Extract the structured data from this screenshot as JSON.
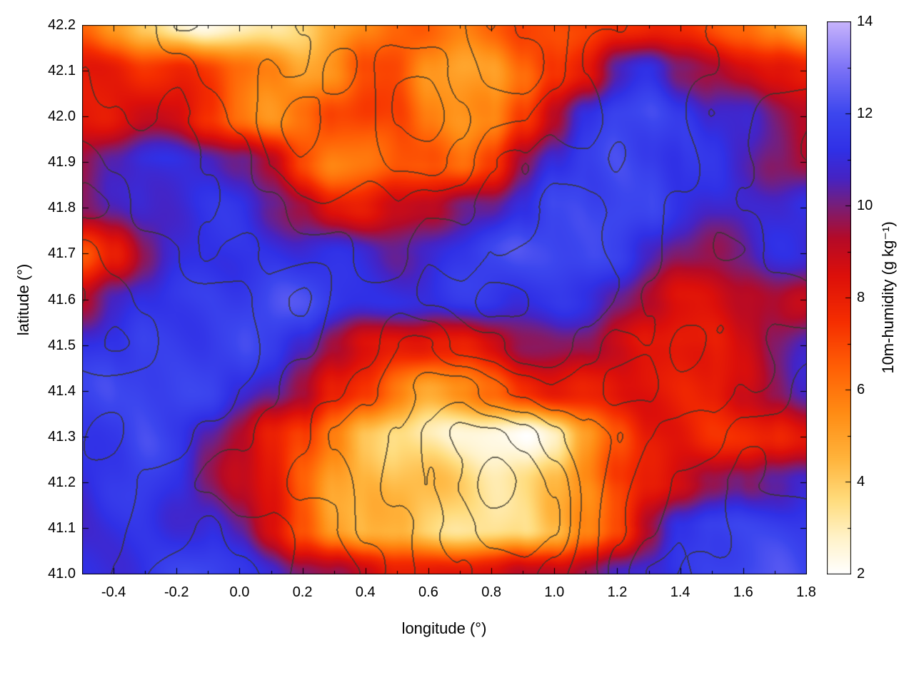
{
  "figure": {
    "background": "#ffffff",
    "frame_color": "#000000"
  },
  "chart_data": {
    "type": "heatmap",
    "title": "",
    "xlabel": "longitude (°)",
    "ylabel": "latitude (°)",
    "x_range": [
      -0.5,
      1.8
    ],
    "y_range": [
      41.0,
      42.2
    ],
    "x_tick_values": [
      -0.4,
      -0.2,
      0.0,
      0.2,
      0.4,
      0.6,
      0.8,
      1.0,
      1.2,
      1.4,
      1.6,
      1.8
    ],
    "x_tick_labels": [
      "-0.4",
      "-0.2",
      "0.0",
      "0.2",
      "0.4",
      "0.6",
      "0.8",
      "1.0",
      "1.2",
      "1.4",
      "1.6",
      "1.8"
    ],
    "x_minor_step": 0.1,
    "y_tick_values": [
      41.0,
      41.1,
      41.2,
      41.3,
      41.4,
      41.5,
      41.6,
      41.7,
      41.8,
      41.9,
      42.0,
      42.1,
      42.2
    ],
    "y_tick_labels": [
      "41.0",
      "41.1",
      "41.2",
      "41.3",
      "41.4",
      "41.5",
      "41.6",
      "41.7",
      "41.8",
      "41.9",
      "42.0",
      "42.1",
      "42.2"
    ],
    "colorbar": {
      "label": "10m-humidity (g kg⁻¹)",
      "min": 2,
      "max": 14,
      "tick_values": [
        2,
        4,
        6,
        8,
        10,
        12,
        14
      ],
      "tick_labels": [
        "2",
        "4",
        "6",
        "8",
        "10",
        "12",
        "14"
      ],
      "minor_step": 1,
      "stops": [
        [
          2.0,
          "#ffffff"
        ],
        [
          2.8,
          "#fff2c8"
        ],
        [
          3.6,
          "#ffdc7d"
        ],
        [
          4.5,
          "#ffb43c"
        ],
        [
          5.5,
          "#ff8c14"
        ],
        [
          6.5,
          "#ff5f05"
        ],
        [
          7.5,
          "#f52d00"
        ],
        [
          8.5,
          "#dc0f0a"
        ],
        [
          9.3,
          "#b40a28"
        ],
        [
          10.0,
          "#781e78"
        ],
        [
          10.6,
          "#4623c3"
        ],
        [
          11.2,
          "#3030e6"
        ],
        [
          12.0,
          "#3c46ee"
        ],
        [
          13.0,
          "#7d73f6"
        ],
        [
          14.0,
          "#c8b4fc"
        ]
      ]
    },
    "grid": {
      "lon": [
        -0.5,
        -0.4,
        -0.3,
        -0.2,
        -0.1,
        0.0,
        0.1,
        0.2,
        0.3,
        0.4,
        0.5,
        0.6,
        0.7,
        0.8,
        0.9,
        1.0,
        1.1,
        1.2,
        1.3,
        1.4,
        1.5,
        1.6,
        1.7,
        1.8
      ],
      "lat_top_to_bottom": [
        42.2,
        42.1,
        42.0,
        41.9,
        41.8,
        41.7,
        41.6,
        41.5,
        41.4,
        41.3,
        41.2,
        41.1,
        41.0
      ],
      "humidity_g_per_kg": [
        [
          6,
          5,
          4,
          3.5,
          3,
          3,
          3.5,
          4,
          4.5,
          5,
          5.5,
          6,
          6,
          6.5,
          7,
          7,
          7,
          7.5,
          7.5,
          7,
          7,
          7,
          6,
          5
        ],
        [
          8,
          8,
          7.5,
          7.5,
          7,
          6.5,
          6,
          5,
          5,
          6,
          6.5,
          5,
          4.5,
          5,
          6.5,
          8,
          9,
          10.5,
          11,
          10,
          9.5,
          9,
          8.5,
          8
        ],
        [
          8.5,
          8,
          8,
          8,
          7,
          6,
          5.5,
          6,
          7,
          7.5,
          7,
          5.5,
          5,
          5.5,
          8,
          10,
          11.5,
          12.3,
          12.3,
          11.5,
          10.5,
          10,
          9.5,
          9.5
        ],
        [
          9.5,
          10,
          10.5,
          10.5,
          10.5,
          10,
          9,
          7.5,
          6.5,
          6.5,
          7,
          6.5,
          6,
          7.5,
          9.5,
          11,
          12,
          12.5,
          12,
          11,
          10.5,
          10,
          9.5,
          9
        ],
        [
          10,
          10.5,
          11,
          11,
          11,
          11,
          10.5,
          10,
          9,
          8.5,
          9,
          9.5,
          10,
          9.5,
          10.5,
          11.5,
          12,
          12.3,
          11.8,
          11,
          10.8,
          10.5,
          10.5,
          10.8
        ],
        [
          7,
          9,
          10.5,
          11,
          11.2,
          11.2,
          11.2,
          11,
          11,
          11,
          10.8,
          10.8,
          11,
          11.3,
          11.5,
          11.8,
          11.8,
          11.5,
          11,
          10.5,
          10.2,
          10.5,
          10.8,
          10.8
        ],
        [
          10,
          11,
          11.5,
          11.8,
          11.8,
          11.5,
          11.5,
          11.3,
          11.2,
          11.2,
          11.2,
          11.2,
          11.4,
          11.5,
          11.2,
          11,
          10.8,
          10.3,
          9.8,
          9.3,
          9,
          9.3,
          9.8,
          9
        ],
        [
          10.8,
          11.2,
          11.8,
          12,
          11.8,
          11.5,
          11,
          10.3,
          9,
          8.3,
          8,
          8.3,
          8.8,
          9.3,
          9.8,
          9.8,
          9.5,
          9,
          8.5,
          8,
          8.3,
          9.3,
          10,
          10.5
        ],
        [
          11,
          11.5,
          12,
          12,
          11.8,
          11.2,
          10.5,
          9.5,
          7.8,
          6.8,
          6,
          5.5,
          6,
          6.8,
          7.8,
          8.3,
          8,
          7.8,
          7.5,
          7.5,
          8,
          9,
          9.8,
          10.3
        ],
        [
          11,
          11.3,
          11.8,
          11.5,
          10.8,
          10,
          8.8,
          7.3,
          5.5,
          4.2,
          3.5,
          3,
          2.6,
          2.4,
          2.5,
          3.2,
          4.5,
          6,
          7.5,
          7.8,
          7.3,
          7.3,
          7.8,
          9
        ],
        [
          11,
          11.2,
          11.5,
          11.2,
          10.5,
          9.8,
          8.5,
          6.8,
          5.2,
          4.3,
          3.8,
          3.5,
          3.4,
          3.3,
          3.6,
          4.3,
          5.5,
          7,
          8,
          8.5,
          9,
          10,
          11,
          11.5
        ],
        [
          11,
          11,
          11.2,
          11,
          10.8,
          10,
          8.8,
          7,
          5.2,
          4.2,
          3.6,
          3.2,
          3,
          2.9,
          3.4,
          4.6,
          6.2,
          7.8,
          9.5,
          11,
          11.8,
          12,
          12,
          11.8
        ],
        [
          11.2,
          11.2,
          11.2,
          11.2,
          11.2,
          11,
          10.8,
          10.2,
          9.5,
          8.8,
          8.2,
          8,
          8,
          8.2,
          9,
          9.8,
          10.5,
          11,
          11.3,
          11.6,
          11.8,
          11.8,
          11.6,
          11.4
        ]
      ]
    },
    "contours": {
      "description": "unlabeled terrain contour lines overlaid on humidity field",
      "line_color": "#37352b",
      "levels_start": 2.5,
      "levels_step": 1.0,
      "field": [
        [
          4,
          4,
          4,
          5,
          5,
          5,
          5,
          6,
          6,
          6,
          6,
          6,
          6,
          7,
          6,
          6,
          5,
          5,
          4,
          4,
          5,
          5,
          5,
          5
        ],
        [
          3,
          4,
          4,
          4,
          5,
          5,
          6,
          6,
          7,
          6,
          7,
          7,
          6,
          7,
          7,
          6,
          5,
          4,
          4,
          4,
          4,
          5,
          5,
          5
        ],
        [
          3,
          3,
          4,
          4,
          4,
          5,
          6,
          7,
          6,
          6,
          7,
          8,
          7,
          6,
          6,
          5,
          5,
          4,
          4,
          4,
          5,
          5,
          6,
          6
        ],
        [
          2,
          3,
          3,
          3,
          4,
          4,
          5,
          6,
          6,
          6,
          7,
          7,
          6,
          5,
          5,
          4,
          4,
          3,
          4,
          4,
          5,
          5,
          6,
          6
        ],
        [
          2,
          2,
          3,
          3,
          3,
          4,
          4,
          5,
          5,
          5,
          6,
          5,
          5,
          4,
          4,
          3,
          3,
          3,
          4,
          5,
          5,
          6,
          6,
          6
        ],
        [
          3,
          2,
          2,
          2,
          3,
          3,
          4,
          4,
          4,
          5,
          5,
          4,
          4,
          3,
          3,
          3,
          3,
          4,
          4,
          5,
          5,
          5,
          6,
          6
        ],
        [
          3,
          3,
          2,
          2,
          2,
          2,
          3,
          3,
          4,
          4,
          4,
          3,
          3,
          2,
          2,
          3,
          3,
          4,
          5,
          5,
          5,
          5,
          5,
          5
        ],
        [
          3,
          3,
          3,
          2,
          2,
          2,
          3,
          3,
          4,
          4,
          5,
          5,
          4,
          4,
          3,
          3,
          4,
          5,
          5,
          6,
          5,
          5,
          4,
          4
        ],
        [
          2,
          2,
          2,
          2,
          2,
          3,
          3,
          4,
          4,
          5,
          6,
          7,
          7,
          6,
          6,
          5,
          5,
          4,
          4,
          5,
          5,
          4,
          4,
          3
        ],
        [
          2,
          2,
          2,
          2,
          3,
          3,
          4,
          4,
          5,
          6,
          7,
          8,
          9,
          9,
          8,
          7,
          6,
          5,
          4,
          4,
          4,
          3,
          3,
          3
        ],
        [
          2,
          2,
          3,
          3,
          3,
          4,
          4,
          5,
          5,
          6,
          7,
          8,
          9,
          10,
          9,
          8,
          6,
          5,
          4,
          3,
          3,
          3,
          3,
          3
        ],
        [
          2,
          2,
          3,
          3,
          2,
          3,
          3,
          4,
          5,
          6,
          6,
          7,
          8,
          9,
          9,
          8,
          6,
          5,
          4,
          3,
          3,
          2,
          2,
          2
        ],
        [
          2,
          2,
          2,
          2,
          2,
          2,
          3,
          4,
          4,
          5,
          6,
          6,
          7,
          8,
          8,
          7,
          6,
          4,
          3,
          3,
          2,
          2,
          2,
          2
        ]
      ]
    }
  }
}
